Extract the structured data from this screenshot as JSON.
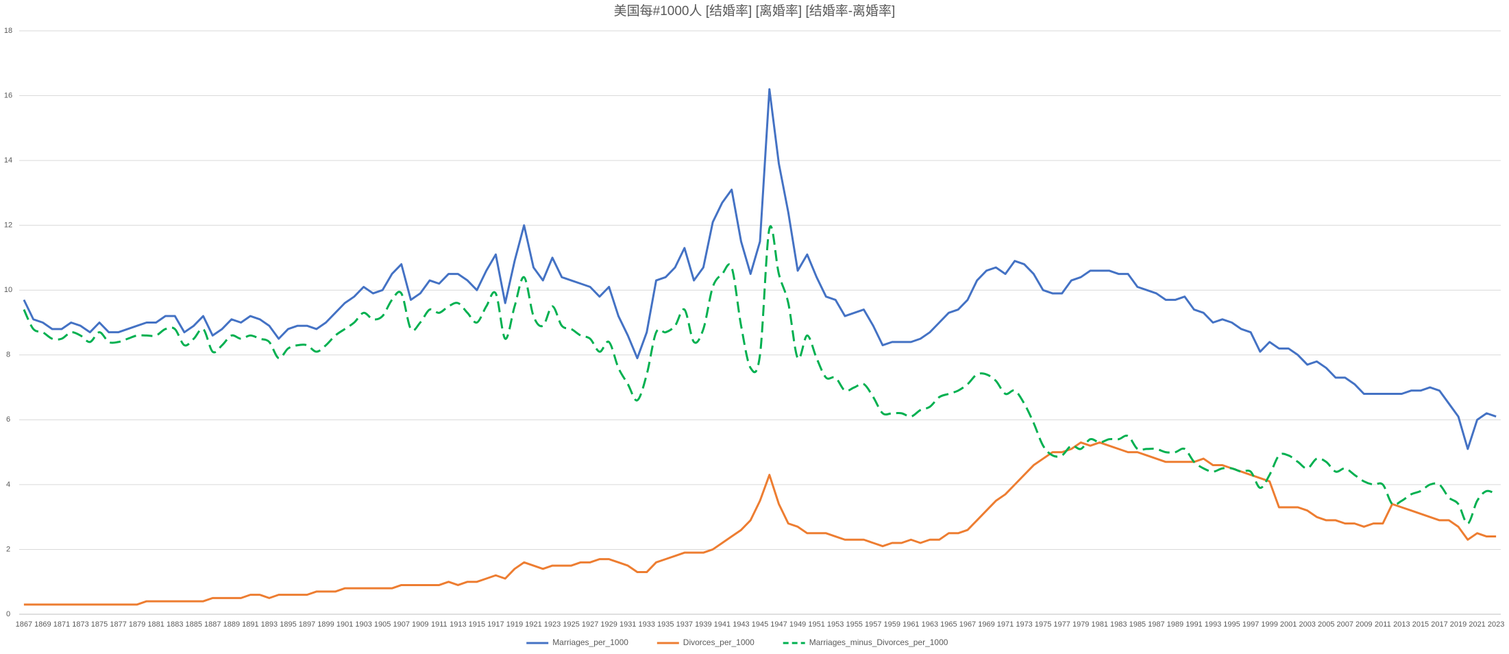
{
  "chart_data": {
    "type": "line",
    "title": "美国每#1000人 [结婚率] [离婚率] [结婚率-离婚率]",
    "categories": [
      "1867",
      null,
      "1869",
      null,
      "1871",
      null,
      "1873",
      null,
      "1875",
      null,
      "1877",
      null,
      "1879",
      null,
      "1881",
      null,
      "1883",
      null,
      "1885",
      null,
      "1887",
      null,
      "1889",
      null,
      "1891",
      null,
      "1893",
      null,
      "1895",
      null,
      "1897",
      null,
      "1899",
      null,
      "1901",
      null,
      "1903",
      null,
      "1905",
      null,
      "1907",
      null,
      "1909",
      null,
      "1911",
      null,
      "1913",
      null,
      "1915",
      null,
      "1917",
      null,
      "1919",
      null,
      "1921",
      null,
      "1923",
      null,
      "1925",
      null,
      "1927",
      null,
      "1929",
      null,
      "1931",
      null,
      "1933",
      null,
      "1935",
      null,
      "1937",
      null,
      "1939",
      null,
      "1941",
      null,
      "1943",
      null,
      "1945",
      null,
      "1947",
      null,
      "1949",
      null,
      "1951",
      null,
      "1953",
      null,
      "1955",
      null,
      "1957",
      null,
      "1959",
      null,
      "1961",
      null,
      "1963",
      null,
      "1965",
      null,
      "1967",
      null,
      "1969",
      null,
      "1971",
      null,
      "1973",
      null,
      "1975",
      null,
      "1977",
      null,
      "1979",
      null,
      "1981",
      null,
      "1983",
      null,
      "1985",
      null,
      "1987",
      null,
      "1989",
      null,
      "1991",
      null,
      "1993",
      null,
      "1995",
      null,
      "1997",
      null,
      "1999",
      null,
      "2001",
      null,
      "2003",
      null,
      "2005",
      null,
      "2007",
      null,
      "2009",
      null,
      "2011",
      null,
      "2013",
      null,
      "2015",
      null,
      "2017",
      null,
      "2019",
      null,
      "2021",
      null,
      "2023"
    ],
    "series": [
      {
        "name": "Marriages_per_1000",
        "color": "#4472c4",
        "dash": false,
        "smooth": false,
        "values": [
          9.7,
          9.1,
          9.0,
          8.8,
          8.8,
          9.0,
          8.9,
          8.7,
          9.0,
          8.7,
          8.7,
          8.8,
          8.9,
          9.0,
          9.0,
          9.2,
          9.2,
          8.7,
          8.9,
          9.2,
          8.6,
          8.8,
          9.1,
          9.0,
          9.2,
          9.1,
          8.9,
          8.5,
          8.8,
          8.9,
          8.9,
          8.8,
          9.0,
          9.3,
          9.6,
          9.8,
          10.1,
          9.9,
          10.0,
          10.5,
          10.8,
          9.7,
          9.9,
          10.3,
          10.2,
          10.5,
          10.5,
          10.3,
          10.0,
          10.6,
          11.1,
          9.6,
          10.9,
          12.0,
          10.7,
          10.3,
          11.0,
          10.4,
          10.3,
          10.2,
          10.1,
          9.8,
          10.1,
          9.2,
          8.6,
          7.9,
          8.7,
          10.3,
          10.4,
          10.7,
          11.3,
          10.3,
          10.7,
          12.1,
          12.7,
          13.1,
          11.5,
          10.5,
          11.5,
          16.2,
          13.9,
          12.4,
          10.6,
          11.1,
          10.4,
          9.8,
          9.7,
          9.2,
          9.3,
          9.4,
          8.9,
          8.3,
          8.4,
          8.4,
          8.4,
          8.5,
          8.7,
          9.0,
          9.3,
          9.4,
          9.7,
          10.3,
          10.6,
          10.7,
          10.5,
          10.9,
          10.8,
          10.5,
          10.0,
          9.9,
          9.9,
          10.3,
          10.4,
          10.6,
          10.6,
          10.6,
          10.5,
          10.5,
          10.1,
          10.0,
          9.9,
          9.7,
          9.7,
          9.8,
          9.4,
          9.3,
          9.0,
          9.1,
          9.0,
          8.8,
          8.7,
          8.1,
          8.4,
          8.2,
          8.2,
          8.0,
          7.7,
          7.8,
          7.6,
          7.3,
          7.3,
          7.1,
          6.8,
          6.8,
          6.8,
          6.8,
          6.8,
          6.9,
          6.9,
          7.0,
          6.9,
          6.5,
          6.1,
          5.1,
          6.0,
          6.2,
          6.1
        ]
      },
      {
        "name": "Divorces_per_1000",
        "color": "#ed7d31",
        "dash": false,
        "smooth": false,
        "values": [
          0.3,
          0.3,
          0.3,
          0.3,
          0.3,
          0.3,
          0.3,
          0.3,
          0.3,
          0.3,
          0.3,
          0.3,
          0.3,
          0.4,
          0.4,
          0.4,
          0.4,
          0.4,
          0.4,
          0.4,
          0.5,
          0.5,
          0.5,
          0.5,
          0.6,
          0.6,
          0.5,
          0.6,
          0.6,
          0.6,
          0.6,
          0.7,
          0.7,
          0.7,
          0.8,
          0.8,
          0.8,
          0.8,
          0.8,
          0.8,
          0.9,
          0.9,
          0.9,
          0.9,
          0.9,
          1.0,
          0.9,
          1.0,
          1.0,
          1.1,
          1.2,
          1.1,
          1.4,
          1.6,
          1.5,
          1.4,
          1.5,
          1.5,
          1.5,
          1.6,
          1.6,
          1.7,
          1.7,
          1.6,
          1.5,
          1.3,
          1.3,
          1.6,
          1.7,
          1.8,
          1.9,
          1.9,
          1.9,
          2.0,
          2.2,
          2.4,
          2.6,
          2.9,
          3.5,
          4.3,
          3.4,
          2.8,
          2.7,
          2.5,
          2.5,
          2.5,
          2.4,
          2.3,
          2.3,
          2.3,
          2.2,
          2.1,
          2.2,
          2.2,
          2.3,
          2.2,
          2.3,
          2.3,
          2.5,
          2.5,
          2.6,
          2.9,
          3.2,
          3.5,
          3.7,
          4.0,
          4.3,
          4.6,
          4.8,
          5.0,
          5.0,
          5.1,
          5.3,
          5.2,
          5.3,
          5.2,
          5.1,
          5.0,
          5.0,
          4.9,
          4.8,
          4.7,
          4.7,
          4.7,
          4.7,
          4.8,
          4.6,
          4.6,
          4.5,
          4.4,
          4.3,
          4.2,
          4.1,
          3.3,
          3.3,
          3.3,
          3.2,
          3.0,
          2.9,
          2.9,
          2.8,
          2.8,
          2.7,
          2.8,
          2.8,
          3.4,
          3.3,
          3.2,
          3.1,
          3.0,
          2.9,
          2.9,
          2.7,
          2.3,
          2.5,
          2.4,
          2.4
        ]
      },
      {
        "name": "Marriages_minus_Divorces_per_1000",
        "color": "#00b050",
        "dash": true,
        "smooth": true,
        "values": [
          9.4,
          8.8,
          8.7,
          8.5,
          8.5,
          8.7,
          8.6,
          8.4,
          8.7,
          8.4,
          8.4,
          8.5,
          8.6,
          8.6,
          8.6,
          8.8,
          8.8,
          8.3,
          8.5,
          8.8,
          8.1,
          8.3,
          8.6,
          8.5,
          8.6,
          8.5,
          8.4,
          7.9,
          8.2,
          8.3,
          8.3,
          8.1,
          8.3,
          8.6,
          8.8,
          9.0,
          9.3,
          9.1,
          9.2,
          9.7,
          9.9,
          8.8,
          9.0,
          9.4,
          9.3,
          9.5,
          9.6,
          9.3,
          9.0,
          9.5,
          9.9,
          8.5,
          9.5,
          10.4,
          9.2,
          8.9,
          9.5,
          8.9,
          8.8,
          8.6,
          8.5,
          8.1,
          8.4,
          7.6,
          7.1,
          6.6,
          7.4,
          8.7,
          8.7,
          8.9,
          9.4,
          8.4,
          8.8,
          10.1,
          10.5,
          10.7,
          8.9,
          7.6,
          8.0,
          11.9,
          10.5,
          9.6,
          7.9,
          8.6,
          7.9,
          7.3,
          7.3,
          6.9,
          7.0,
          7.1,
          6.7,
          6.2,
          6.2,
          6.2,
          6.1,
          6.3,
          6.4,
          6.7,
          6.8,
          6.9,
          7.1,
          7.4,
          7.4,
          7.2,
          6.8,
          6.9,
          6.5,
          5.9,
          5.2,
          4.9,
          4.9,
          5.2,
          5.1,
          5.4,
          5.3,
          5.4,
          5.4,
          5.5,
          5.1,
          5.1,
          5.1,
          5.0,
          5.0,
          5.1,
          4.7,
          4.5,
          4.4,
          4.5,
          4.5,
          4.4,
          4.4,
          3.9,
          4.3,
          4.9,
          4.9,
          4.7,
          4.5,
          4.8,
          4.7,
          4.4,
          4.5,
          4.3,
          4.1,
          4.0,
          4.0,
          3.4,
          3.5,
          3.7,
          3.8,
          4.0,
          4.0,
          3.6,
          3.4,
          2.8,
          3.5,
          3.8,
          3.7
        ]
      }
    ],
    "ylim": [
      0,
      18
    ],
    "yticks": [
      0,
      2,
      4,
      6,
      8,
      10,
      12,
      14,
      16,
      18
    ],
    "grid": true,
    "legend": "bottom"
  }
}
